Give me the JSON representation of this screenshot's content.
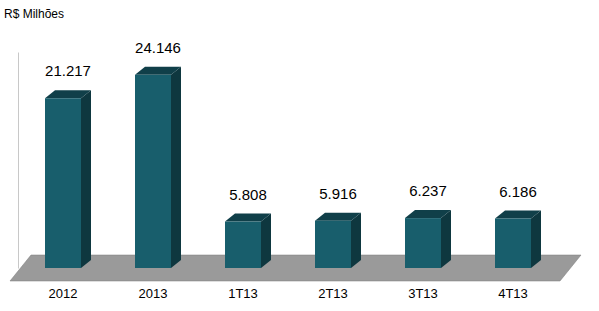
{
  "chart_data": {
    "type": "bar",
    "y_label": "R$ Milhões",
    "categories": [
      "2012",
      "2013",
      "1T13",
      "2T13",
      "3T13",
      "4T13"
    ],
    "values": [
      21217,
      24146,
      5808,
      5916,
      6237,
      6186
    ],
    "value_labels": [
      "21.217",
      "24.146",
      "5.808",
      "5.916",
      "6.237",
      "6.186"
    ],
    "color": "#185e6c",
    "ylim": [
      0,
      27000
    ],
    "data_labels": true,
    "tick_labels": "x",
    "grid": false
  }
}
